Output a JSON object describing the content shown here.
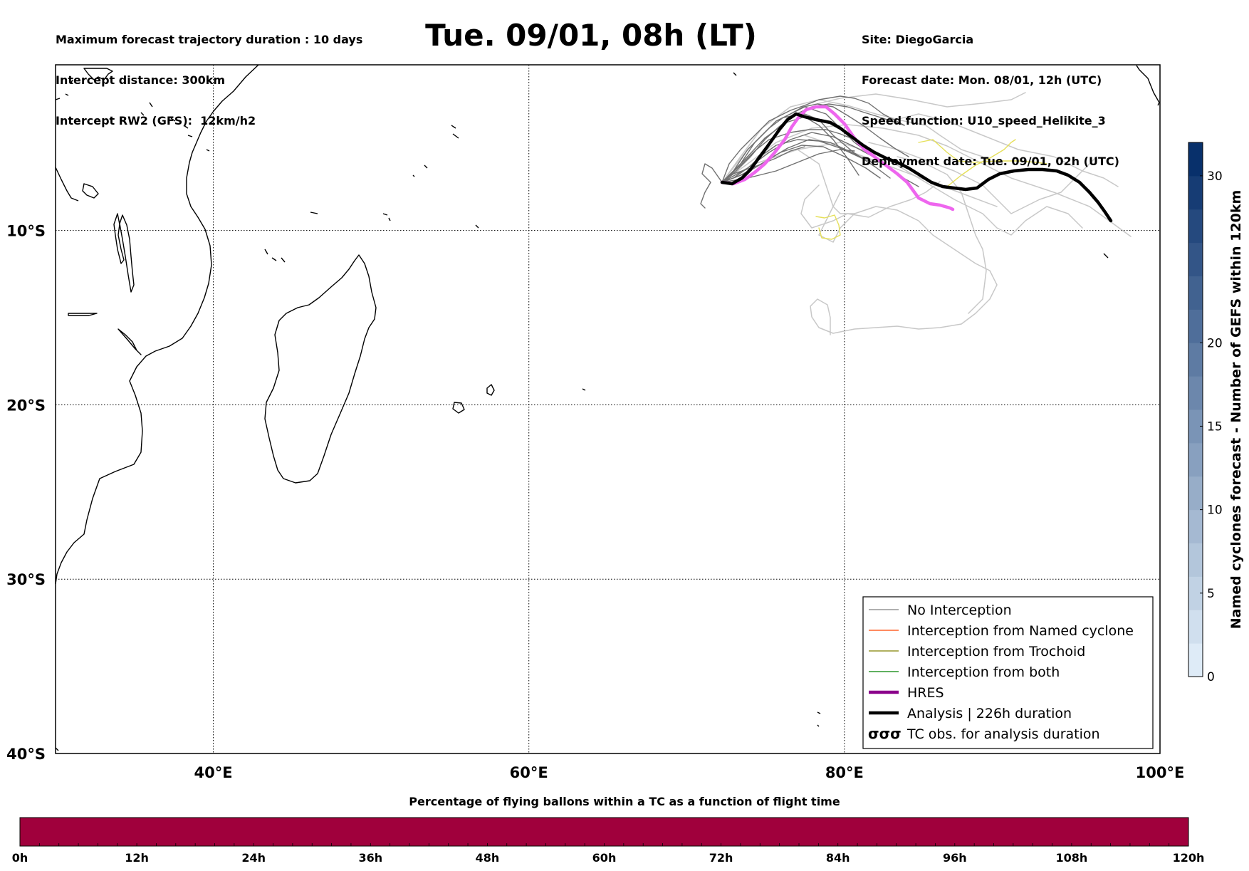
{
  "header": {
    "left_lines": [
      "Maximum forecast trajectory duration : 10 days",
      "Intercept distance: 300km",
      "Intercept RW2 (GFS):  12km/h2"
    ],
    "title": "Tue. 09/01, 08h (LT)",
    "right_lines": [
      "Site: DiegoGarcia",
      "Forecast date: Mon. 08/01, 12h (UTC)",
      "Speed function: U10_speed_Helikite_3",
      "Deployment date: Tue. 09/01, 02h (UTC)"
    ]
  },
  "map": {
    "lon_ticks": [
      "40°E",
      "60°E",
      "80°E",
      "100°E"
    ],
    "lat_ticks": [
      "10°S",
      "20°S",
      "30°S",
      "40°S"
    ],
    "extent": {
      "lon_min": 30,
      "lon_max": 100,
      "lat_min": -40,
      "lat_max": -0.5
    }
  },
  "legend": {
    "items": [
      {
        "label": "No Interception",
        "color": "#808080",
        "style": "thin"
      },
      {
        "label": "Interception from Named cyclone",
        "color": "#ff4500",
        "style": "thin"
      },
      {
        "label": "Interception from Trochoid",
        "color": "#808000",
        "style": "thin"
      },
      {
        "label": "Interception from both",
        "color": "#008000",
        "style": "thin"
      },
      {
        "label": "HRES",
        "color": "#8b008b",
        "style": "thick"
      },
      {
        "label": "Analysis | 226h duration",
        "color": "#000000",
        "style": "thick"
      },
      {
        "label": "TC obs. for analysis duration",
        "color": "#000000",
        "style": "symbol",
        "symbol": "σσσ"
      }
    ]
  },
  "colorbar_right": {
    "label": "Named cyclones forecast - Number of GEFS within 120km",
    "ticks": [
      0,
      5,
      10,
      15,
      20,
      30
    ],
    "min": 0,
    "max": 32
  },
  "bottom_bar": {
    "title": "Percentage of flying ballons within a TC as a function of flight time",
    "color": "#a0003c",
    "ticks": [
      "0h",
      "12h",
      "24h",
      "36h",
      "48h",
      "60h",
      "72h",
      "84h",
      "96h",
      "108h",
      "120h"
    ]
  }
}
